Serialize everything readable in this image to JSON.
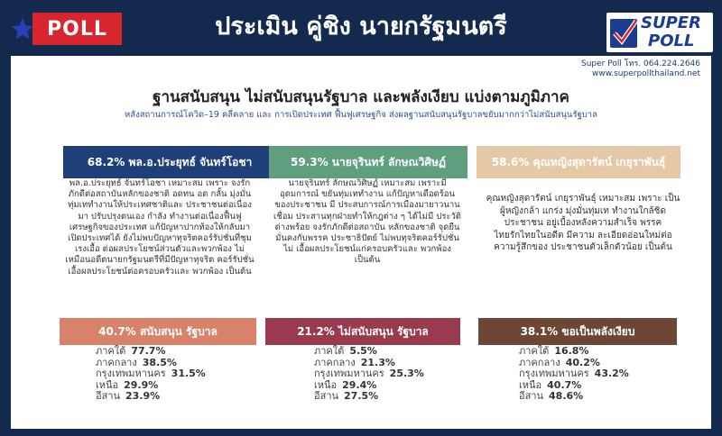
{
  "header": {
    "tag": "POLL",
    "title": "ประเมิน คู่ชิง นายกรัฐมนตรี",
    "logo_line1": "SUPER",
    "logo_line2": "POLL",
    "contact_line1": "Super Poll โทร. 064.224.2646",
    "contact_line2": "www.superpollthailand.net"
  },
  "report": {
    "title": "ฐานสนับสนุน ไม่สนับสนุนรัฐบาล และพลังเงียบ แบ่งตามภูมิภาค",
    "subtitle": "หลังสถานการณ์โควิด–19 คลี่คลาย และ การเปิดประเทศ ฟื้นฟูเศรษฐกิจ ส่งผลฐานสนับสนุนรัฐบาลขยับมากกว่าไม่สนับสนุนรัฐบาล"
  },
  "candidates": [
    {
      "heading": "68.2% พล.อ.ประยุทธ์ จันทร์โอชา",
      "description": "พล.อ.ประยุทธ์ จันทร์โอชา เหมาะสม เพราะ จงรักภักดีต่อสถาบันหลักของชาติ อดทน อด กลั้น มุ่งมั่นทุ่มเททำงานให้ประเทศชาติและ ประชาชนต่อเนื่องมา ปรับปรุงตนเอง กำลัง ทำงานต่อเนื่องฟื้นฟูเศรษฐกิจของประเทศ แก้ปัญหาปากท้องให้กลับมาเปิดประเทศได้ ยังไม่พบปัญหาทุจริตคอร์รัปชั่นที่ชุมเรงเอื้อ ต่อผลประโยชน์ส่วนตัวและพวกพ้อง ไม่ เหมือนอดีตนายกรัฐมนตรีที่มีปัญหาทุจริต คอร์รัปชั่นเอื้อผลประโยชน์ต่อครอบครัวและ พวกพ้อง เป็นต้น",
      "color": "#1e3f78"
    },
    {
      "heading": "59.3% นายจุรินทร์ ลักษณวิศิษฏ์",
      "description": "นายจุรินทร์ ลักษณวิศิษฏ์ เหมาะสม เพราะมีอุดมการณ์ ขยันทุ่มเททำงาน แก้ปัญหาเดือดร้อนของประชาชน มี ประสบการณ์การเมืองมายาวนาน เชื่อม ประสานทุกฝ่ายทำให้กฎต่าง ๆ ได้ไม่มี ประวัติด่างพร้อย จงรักภักดีต่อสถาบัน หลักของชาติ จุดยืนมั่นคงกับพรรค ประชาธิปัตย์ ไม่พบทุจริตคอร์รัปชั่น ไม่ เอื้อผลประโยชน์แก่ครอบครัวและ พวกพ้อง เป็นต้น",
      "color": "#5f9e7f"
    },
    {
      "heading": "58.6% คุณหญิงสุดารัตน์ เกยุราพันธุ์",
      "description": "คุณหญิงสุดารัตน์ เกยุราพันธุ์ เหมาะสม เพราะ เป็นผู้หญิงกล้า แกร่ง มุ่งมั่นทุ่มเท ทำงานใกล้ชิด ประชาชน อยู่เบื้องหลังความสำเร็จ พรรคไทยรักไทยในอดีต มีความ ละเอียดอ่อนใหม่ต่อความรู้สึกของ ประชาชนตัวเล็กตัวน้อย เป็นต้น",
      "color": "#e5c9a6"
    }
  ],
  "groups": [
    {
      "heading": "40.7% สนับสนุน รัฐบาล",
      "color": "#d8826a",
      "regions": [
        {
          "name": "ภาคใต้",
          "value": "77.7%"
        },
        {
          "name": "ภาคกลาง",
          "value": "38.5%"
        },
        {
          "name": "กรุงเทพมหานคร",
          "value": "31.5%"
        },
        {
          "name": "เหนือ",
          "value": "29.9%"
        },
        {
          "name": "อีสาน",
          "value": "23.9%"
        }
      ]
    },
    {
      "heading": "21.2% ไม่สนับสนุน รัฐบาล",
      "color": "#9a3a50",
      "regions": [
        {
          "name": "ภาคใต้",
          "value": "5.5%"
        },
        {
          "name": "ภาคกลาง",
          "value": "21.3%"
        },
        {
          "name": "กรุงเทพมหานคร",
          "value": "25.3%"
        },
        {
          "name": "เหนือ",
          "value": "29.4%"
        },
        {
          "name": "อีสาน",
          "value": "27.5%"
        }
      ]
    },
    {
      "heading": "38.1% ขอเป็นพลังเงียบ",
      "color": "#6e4636",
      "regions": [
        {
          "name": "ภาคใต้",
          "value": "16.8%"
        },
        {
          "name": "ภาคกลาง",
          "value": "40.2%"
        },
        {
          "name": "กรุงเทพมหานคร",
          "value": "43.2%"
        },
        {
          "name": "เหนือ",
          "value": "40.7%"
        },
        {
          "name": "อีสาน",
          "value": "48.6%"
        }
      ]
    }
  ],
  "colors": {
    "background": "#13294e",
    "poll_tag": "#d8262f",
    "logo_blue": "#1a3d8f"
  }
}
